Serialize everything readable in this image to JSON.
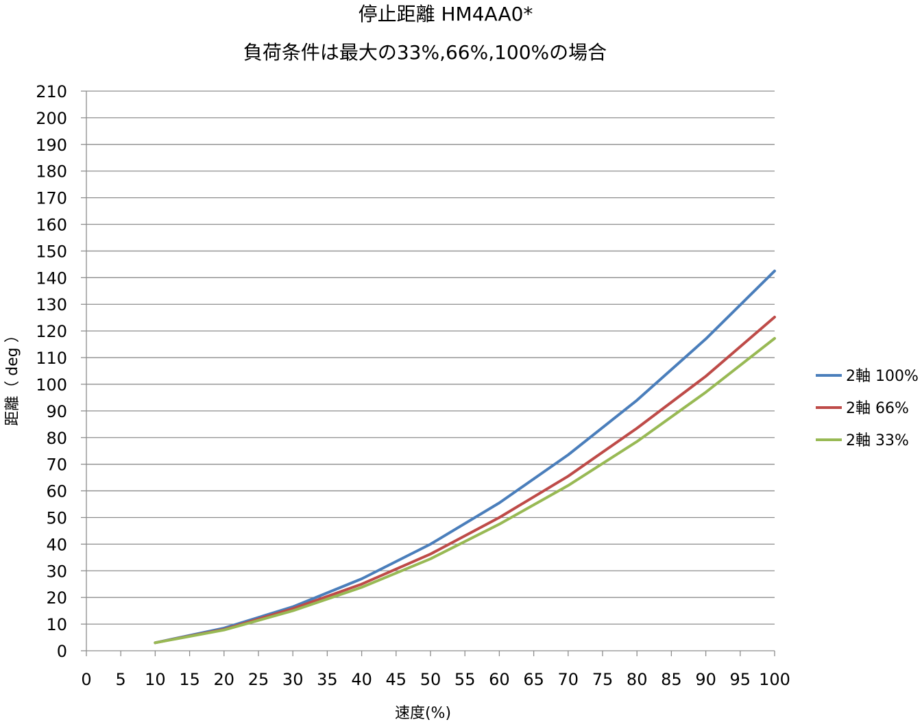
{
  "chart_data": {
    "type": "line",
    "title": "停止距離 HM4AA0*",
    "subtitle": "負荷条件は最大の33%,66%,100%の場合",
    "xlabel": "速度(%)",
    "ylabel": "距離（ deg ）",
    "xlim": [
      0,
      100
    ],
    "ylim": [
      0,
      210
    ],
    "x_ticks": [
      0,
      5,
      10,
      15,
      20,
      25,
      30,
      35,
      40,
      45,
      50,
      55,
      60,
      65,
      70,
      75,
      80,
      85,
      90,
      95,
      100
    ],
    "y_ticks": [
      0,
      10,
      20,
      30,
      40,
      50,
      60,
      70,
      80,
      90,
      100,
      110,
      120,
      130,
      140,
      150,
      160,
      170,
      180,
      190,
      200,
      210
    ],
    "grid": "horizontal",
    "legend_position": "right",
    "x": [
      10,
      20,
      30,
      40,
      50,
      60,
      70,
      80,
      90,
      100
    ],
    "series": [
      {
        "name": "2軸 100%",
        "color": "#4a7ebb",
        "values": [
          3,
          8.5,
          16.5,
          27,
          40,
          55.5,
          73.5,
          94,
          117,
          142.5
        ]
      },
      {
        "name": "2軸 66%",
        "color": "#be4b48",
        "values": [
          3,
          8,
          15.8,
          25,
          36.3,
          50,
          65.5,
          83.5,
          103,
          125.2
        ]
      },
      {
        "name": "2軸 33%",
        "color": "#98b954",
        "values": [
          3,
          7.8,
          15,
          23.8,
          34.5,
          47.5,
          62,
          78.5,
          97,
          117.2
        ]
      }
    ]
  }
}
